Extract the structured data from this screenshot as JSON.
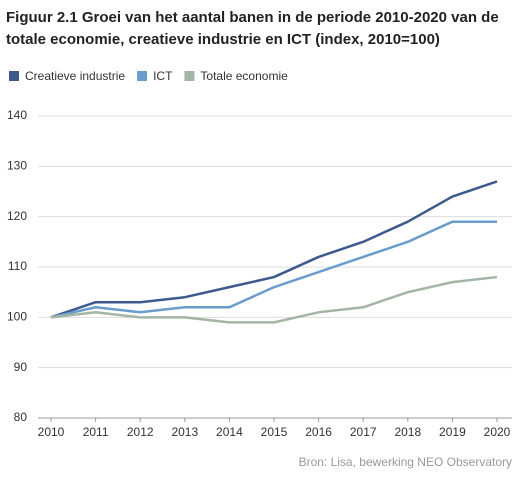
{
  "chart_data": {
    "type": "line",
    "title": "Figuur 2.1 Groei van het aantal banen in de periode 2010-2020 van de",
    "subtitle": "totale economie, creatieve industrie en ICT (index, 2010=100)",
    "source": "Bron:  Lisa, bewerking NEO Observatory",
    "x": [
      2010,
      2011,
      2012,
      2013,
      2014,
      2015,
      2016,
      2017,
      2018,
      2019,
      2020
    ],
    "xlim": [
      2010,
      2020
    ],
    "xticks": [
      2010,
      2011,
      2012,
      2013,
      2014,
      2015,
      2016,
      2017,
      2018,
      2019,
      2020
    ],
    "ylim": [
      80,
      140
    ],
    "yticks": [
      80,
      90,
      100,
      110,
      120,
      130,
      140
    ],
    "grid": true,
    "series": [
      {
        "name": "Creatieve industrie",
        "color": "#3d5a8e",
        "values": [
          100,
          103,
          103,
          104,
          106,
          108,
          112,
          115,
          119,
          124,
          127
        ]
      },
      {
        "name": "ICT",
        "color": "#6a9ccc",
        "values": [
          100,
          102,
          101,
          102,
          102,
          106,
          109,
          112,
          115,
          119,
          119
        ]
      },
      {
        "name": "Totale economie",
        "color": "#a3b5a6",
        "values": [
          100,
          101,
          100,
          100,
          99,
          99,
          101,
          102,
          105,
          107,
          108
        ]
      }
    ]
  }
}
